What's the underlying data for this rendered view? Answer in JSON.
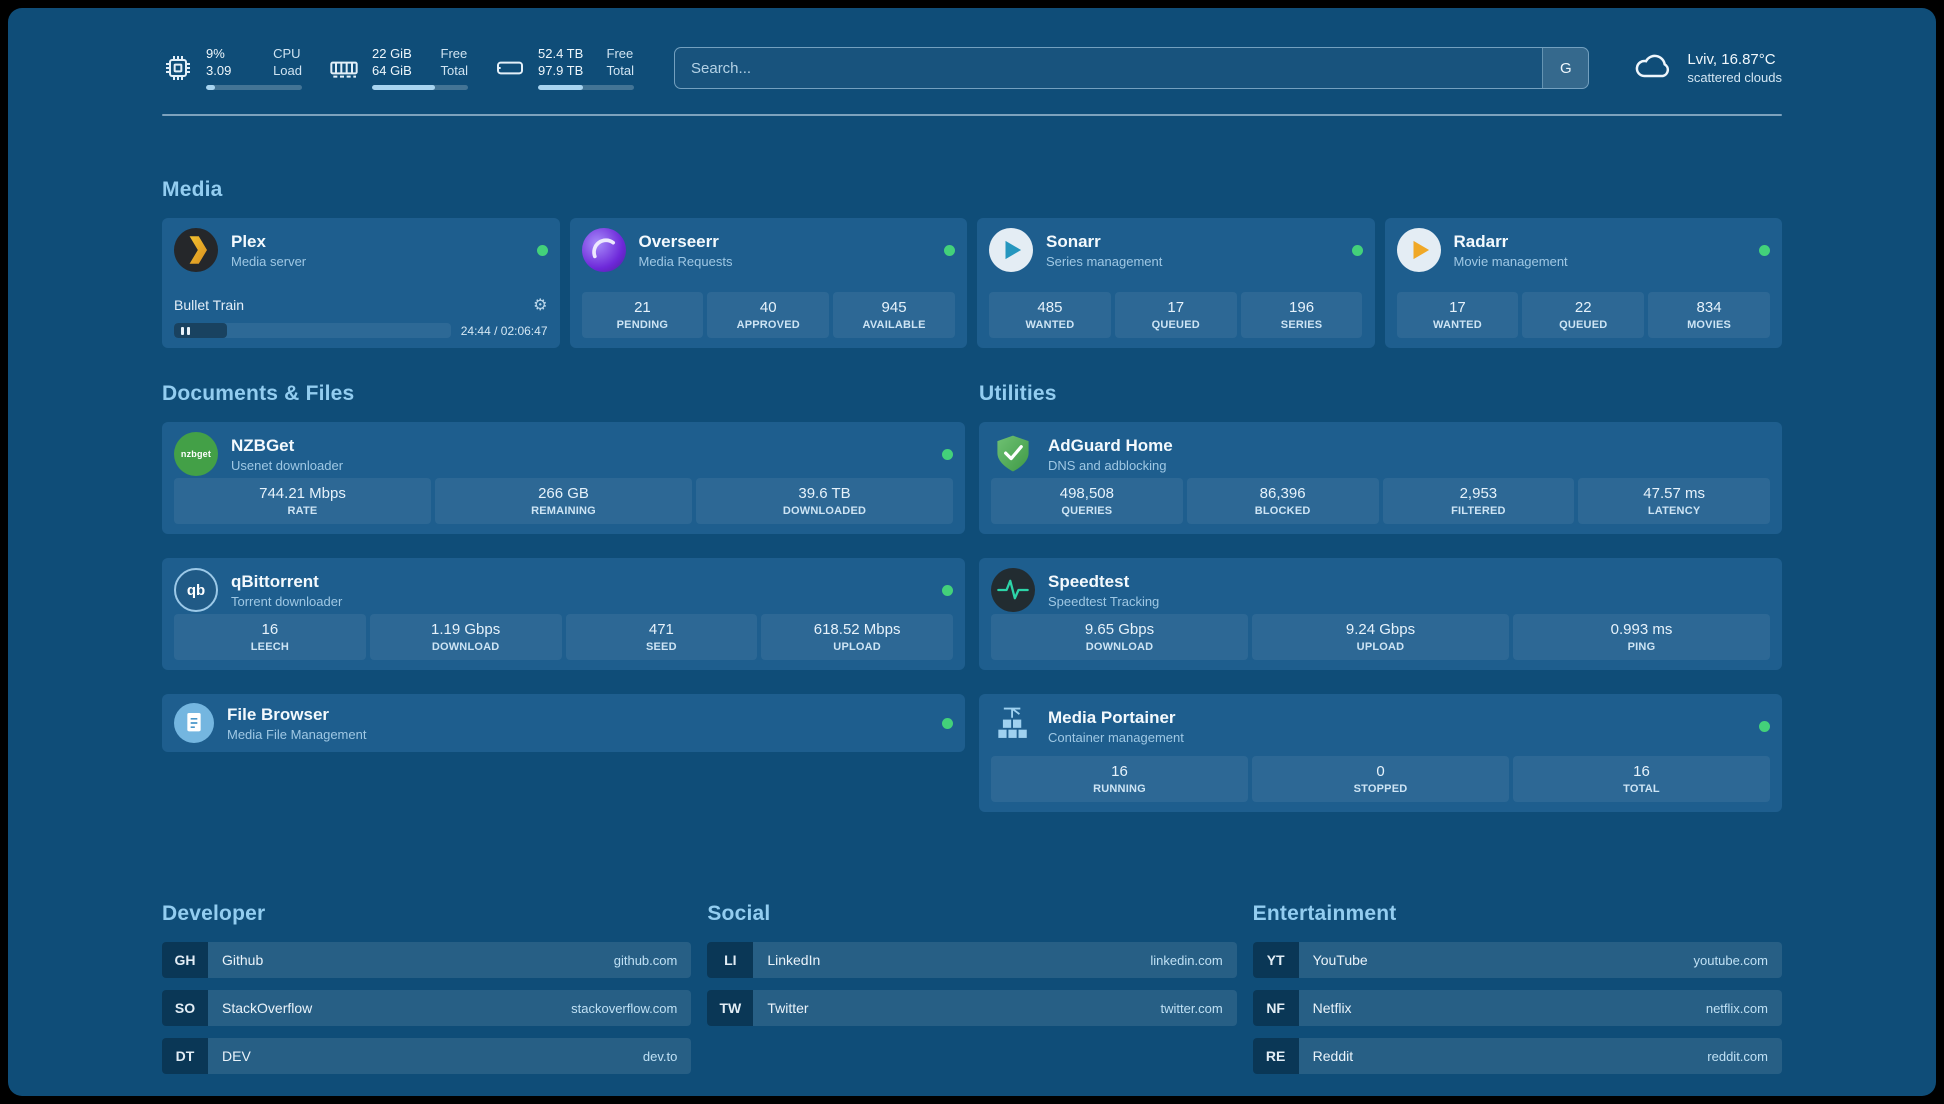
{
  "topbar": {
    "cpu": {
      "values": [
        "9%",
        "3.09"
      ],
      "labels": [
        "CPU",
        "Load"
      ],
      "percent": 9
    },
    "ram": {
      "values": [
        "22 GiB",
        "64 GiB"
      ],
      "labels": [
        "Free",
        "Total"
      ],
      "percent": 66
    },
    "disk": {
      "values": [
        "52.4 TB",
        "97.9 TB"
      ],
      "labels": [
        "Free",
        "Total"
      ],
      "percent": 47
    },
    "search": {
      "placeholder": "Search...",
      "button_label": "G"
    },
    "weather": {
      "location": "Lviv, 16.87°C",
      "condition": "scattered clouds"
    }
  },
  "media": {
    "title": "Media",
    "plex": {
      "name": "Plex",
      "subtitle": "Media server",
      "now_playing": "Bullet Train",
      "time": "24:44 / 02:06:47",
      "progress_percent": 19
    },
    "overseerr": {
      "name": "Overseerr",
      "subtitle": "Media Requests",
      "stats": [
        {
          "value": "21",
          "label": "PENDING"
        },
        {
          "value": "40",
          "label": "APPROVED"
        },
        {
          "value": "945",
          "label": "AVAILABLE"
        }
      ]
    },
    "sonarr": {
      "name": "Sonarr",
      "subtitle": "Series management",
      "stats": [
        {
          "value": "485",
          "label": "WANTED"
        },
        {
          "value": "17",
          "label": "QUEUED"
        },
        {
          "value": "196",
          "label": "SERIES"
        }
      ]
    },
    "radarr": {
      "name": "Radarr",
      "subtitle": "Movie management",
      "stats": [
        {
          "value": "17",
          "label": "WANTED"
        },
        {
          "value": "22",
          "label": "QUEUED"
        },
        {
          "value": "834",
          "label": "MOVIES"
        }
      ]
    }
  },
  "documents": {
    "title": "Documents & Files",
    "nzbget": {
      "name": "NZBGet",
      "subtitle": "Usenet downloader",
      "icon_text": "nzbget",
      "stats": [
        {
          "value": "744.21 Mbps",
          "label": "RATE"
        },
        {
          "value": "266 GB",
          "label": "REMAINING"
        },
        {
          "value": "39.6 TB",
          "label": "DOWNLOADED"
        }
      ]
    },
    "qbittorrent": {
      "name": "qBittorrent",
      "subtitle": "Torrent downloader",
      "icon_text": "qb",
      "stats": [
        {
          "value": "16",
          "label": "LEECH"
        },
        {
          "value": "1.19 Gbps",
          "label": "DOWNLOAD"
        },
        {
          "value": "471",
          "label": "SEED"
        },
        {
          "value": "618.52 Mbps",
          "label": "UPLOAD"
        }
      ]
    },
    "filebrowser": {
      "name": "File Browser",
      "subtitle": "Media File Management"
    }
  },
  "utilities": {
    "title": "Utilities",
    "adguard": {
      "name": "AdGuard Home",
      "subtitle": "DNS and adblocking",
      "stats": [
        {
          "value": "498,508",
          "label": "QUERIES"
        },
        {
          "value": "86,396",
          "label": "BLOCKED"
        },
        {
          "value": "2,953",
          "label": "FILTERED"
        },
        {
          "value": "47.57 ms",
          "label": "LATENCY"
        }
      ]
    },
    "speedtest": {
      "name": "Speedtest",
      "subtitle": "Speedtest Tracking",
      "stats": [
        {
          "value": "9.65 Gbps",
          "label": "DOWNLOAD"
        },
        {
          "value": "9.24 Gbps",
          "label": "UPLOAD"
        },
        {
          "value": "0.993 ms",
          "label": "PING"
        }
      ]
    },
    "portainer": {
      "name": "Media Portainer",
      "subtitle": "Container management",
      "stats": [
        {
          "value": "16",
          "label": "RUNNING"
        },
        {
          "value": "0",
          "label": "STOPPED"
        },
        {
          "value": "16",
          "label": "TOTAL"
        }
      ]
    }
  },
  "bookmarks": {
    "developer": {
      "title": "Developer",
      "items": [
        {
          "abbr": "GH",
          "name": "Github",
          "url": "github.com"
        },
        {
          "abbr": "SO",
          "name": "StackOverflow",
          "url": "stackoverflow.com"
        },
        {
          "abbr": "DT",
          "name": "DEV",
          "url": "dev.to"
        }
      ]
    },
    "social": {
      "title": "Social",
      "items": [
        {
          "abbr": "LI",
          "name": "LinkedIn",
          "url": "linkedin.com"
        },
        {
          "abbr": "TW",
          "name": "Twitter",
          "url": "twitter.com"
        }
      ]
    },
    "entertainment": {
      "title": "Entertainment",
      "items": [
        {
          "abbr": "YT",
          "name": "YouTube",
          "url": "youtube.com"
        },
        {
          "abbr": "NF",
          "name": "Netflix",
          "url": "netflix.com"
        },
        {
          "abbr": "RE",
          "name": "Reddit",
          "url": "reddit.com"
        }
      ]
    }
  }
}
